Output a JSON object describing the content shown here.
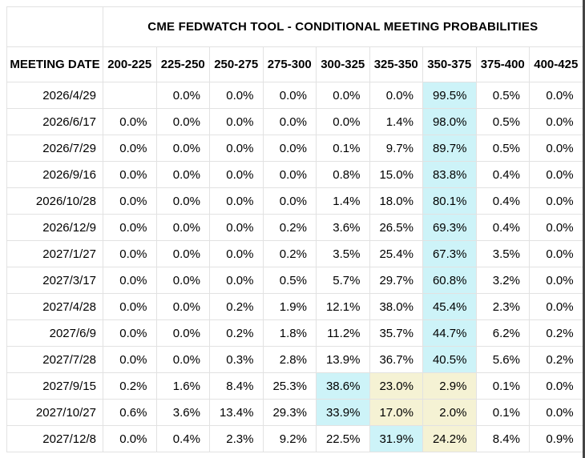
{
  "chart_data": {
    "type": "table",
    "title": "CME FEDWATCH TOOL - CONDITIONAL MEETING PROBABILITIES",
    "date_column_header": "MEETING DATE",
    "rate_bin_headers": [
      "200-225",
      "225-250",
      "250-275",
      "275-300",
      "300-325",
      "325-350",
      "350-375",
      "375-400",
      "400-425"
    ],
    "highlight_colors": {
      "cyan": "#cdf3f8",
      "yellow": "#f5f2d4"
    },
    "rows": [
      {
        "date": "2026/4/29",
        "values": [
          "",
          "0.0%",
          "0.0%",
          "0.0%",
          "0.0%",
          "0.0%",
          "99.5%",
          "0.5%",
          "0.0%"
        ],
        "highlights": [
          "",
          "",
          "",
          "",
          "",
          "",
          "cyan",
          "",
          ""
        ]
      },
      {
        "date": "2026/6/17",
        "values": [
          "0.0%",
          "0.0%",
          "0.0%",
          "0.0%",
          "0.0%",
          "1.4%",
          "98.0%",
          "0.5%",
          "0.0%"
        ],
        "highlights": [
          "",
          "",
          "",
          "",
          "",
          "",
          "cyan",
          "",
          ""
        ]
      },
      {
        "date": "2026/7/29",
        "values": [
          "0.0%",
          "0.0%",
          "0.0%",
          "0.0%",
          "0.1%",
          "9.7%",
          "89.7%",
          "0.5%",
          "0.0%"
        ],
        "highlights": [
          "",
          "",
          "",
          "",
          "",
          "",
          "cyan",
          "",
          ""
        ]
      },
      {
        "date": "2026/9/16",
        "values": [
          "0.0%",
          "0.0%",
          "0.0%",
          "0.0%",
          "0.8%",
          "15.0%",
          "83.8%",
          "0.4%",
          "0.0%"
        ],
        "highlights": [
          "",
          "",
          "",
          "",
          "",
          "",
          "cyan",
          "",
          ""
        ]
      },
      {
        "date": "2026/10/28",
        "values": [
          "0.0%",
          "0.0%",
          "0.0%",
          "0.0%",
          "1.4%",
          "18.0%",
          "80.1%",
          "0.4%",
          "0.0%"
        ],
        "highlights": [
          "",
          "",
          "",
          "",
          "",
          "",
          "cyan",
          "",
          ""
        ]
      },
      {
        "date": "2026/12/9",
        "values": [
          "0.0%",
          "0.0%",
          "0.0%",
          "0.2%",
          "3.6%",
          "26.5%",
          "69.3%",
          "0.4%",
          "0.0%"
        ],
        "highlights": [
          "",
          "",
          "",
          "",
          "",
          "",
          "cyan",
          "",
          ""
        ]
      },
      {
        "date": "2027/1/27",
        "values": [
          "0.0%",
          "0.0%",
          "0.0%",
          "0.2%",
          "3.5%",
          "25.4%",
          "67.3%",
          "3.5%",
          "0.0%"
        ],
        "highlights": [
          "",
          "",
          "",
          "",
          "",
          "",
          "cyan",
          "",
          ""
        ]
      },
      {
        "date": "2027/3/17",
        "values": [
          "0.0%",
          "0.0%",
          "0.0%",
          "0.5%",
          "5.7%",
          "29.7%",
          "60.8%",
          "3.2%",
          "0.0%"
        ],
        "highlights": [
          "",
          "",
          "",
          "",
          "",
          "",
          "cyan",
          "",
          ""
        ]
      },
      {
        "date": "2027/4/28",
        "values": [
          "0.0%",
          "0.0%",
          "0.2%",
          "1.9%",
          "12.1%",
          "38.0%",
          "45.4%",
          "2.3%",
          "0.0%"
        ],
        "highlights": [
          "",
          "",
          "",
          "",
          "",
          "",
          "cyan",
          "",
          ""
        ]
      },
      {
        "date": "2027/6/9",
        "values": [
          "0.0%",
          "0.0%",
          "0.2%",
          "1.8%",
          "11.2%",
          "35.7%",
          "44.7%",
          "6.2%",
          "0.2%"
        ],
        "highlights": [
          "",
          "",
          "",
          "",
          "",
          "",
          "cyan",
          "",
          ""
        ]
      },
      {
        "date": "2027/7/28",
        "values": [
          "0.0%",
          "0.0%",
          "0.3%",
          "2.8%",
          "13.9%",
          "36.7%",
          "40.5%",
          "5.6%",
          "0.2%"
        ],
        "highlights": [
          "",
          "",
          "",
          "",
          "",
          "",
          "cyan",
          "",
          ""
        ]
      },
      {
        "date": "2027/9/15",
        "values": [
          "0.2%",
          "1.6%",
          "8.4%",
          "25.3%",
          "38.6%",
          "23.0%",
          "2.9%",
          "0.1%",
          "0.0%"
        ],
        "highlights": [
          "",
          "",
          "",
          "",
          "cyan",
          "yellow",
          "yellow",
          "",
          ""
        ]
      },
      {
        "date": "2027/10/27",
        "values": [
          "0.6%",
          "3.6%",
          "13.4%",
          "29.3%",
          "33.9%",
          "17.0%",
          "2.0%",
          "0.1%",
          "0.0%"
        ],
        "highlights": [
          "",
          "",
          "",
          "",
          "cyan",
          "yellow",
          "yellow",
          "",
          ""
        ]
      },
      {
        "date": "2027/12/8",
        "values": [
          "0.0%",
          "0.4%",
          "2.3%",
          "9.2%",
          "22.5%",
          "31.9%",
          "24.2%",
          "8.4%",
          "0.9%"
        ],
        "highlights": [
          "",
          "",
          "",
          "",
          "",
          "cyan",
          "yellow",
          "",
          ""
        ]
      }
    ]
  }
}
